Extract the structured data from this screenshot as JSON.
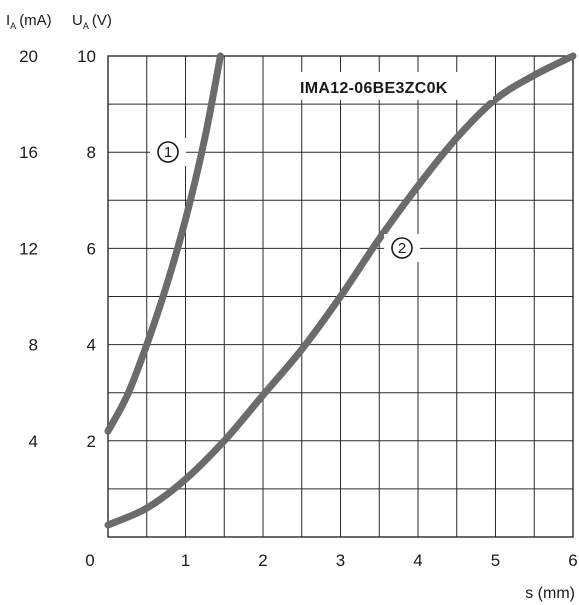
{
  "chart_data": {
    "type": "line",
    "title": "IMA12-06BE3ZC0K",
    "xlabel": "s (mm)",
    "ylabel_left": {
      "main": "I",
      "sub": "A",
      "unit": "(mA)"
    },
    "ylabel_right": {
      "main": "U",
      "sub": "A",
      "unit": "(V)"
    },
    "xlim": [
      0,
      6
    ],
    "ylim": [
      0,
      10
    ],
    "x_ticks": [
      "0",
      "1",
      "2",
      "3",
      "4",
      "5",
      "6"
    ],
    "y_ticks_voltage": [
      "2",
      "4",
      "6",
      "8",
      "10"
    ],
    "y_ticks_current": [
      "4",
      "8",
      "12",
      "16",
      "20"
    ],
    "grid": true,
    "series": [
      {
        "name": "①",
        "color": "#6b6b6b",
        "x": [
          0,
          0.25,
          0.5,
          0.75,
          1.0,
          1.25,
          1.45
        ],
        "y": [
          2.2,
          2.95,
          4.0,
          5.2,
          6.6,
          8.3,
          10.0
        ]
      },
      {
        "name": "②",
        "color": "#6b6b6b",
        "x": [
          0,
          0.5,
          1.0,
          1.5,
          2.0,
          2.5,
          3.0,
          3.5,
          4.0,
          4.5,
          5.0,
          5.5,
          6.0
        ],
        "y": [
          0.25,
          0.6,
          1.2,
          2.0,
          2.95,
          3.9,
          5.0,
          6.2,
          7.3,
          8.3,
          9.1,
          9.6,
          10.0
        ]
      }
    ]
  }
}
